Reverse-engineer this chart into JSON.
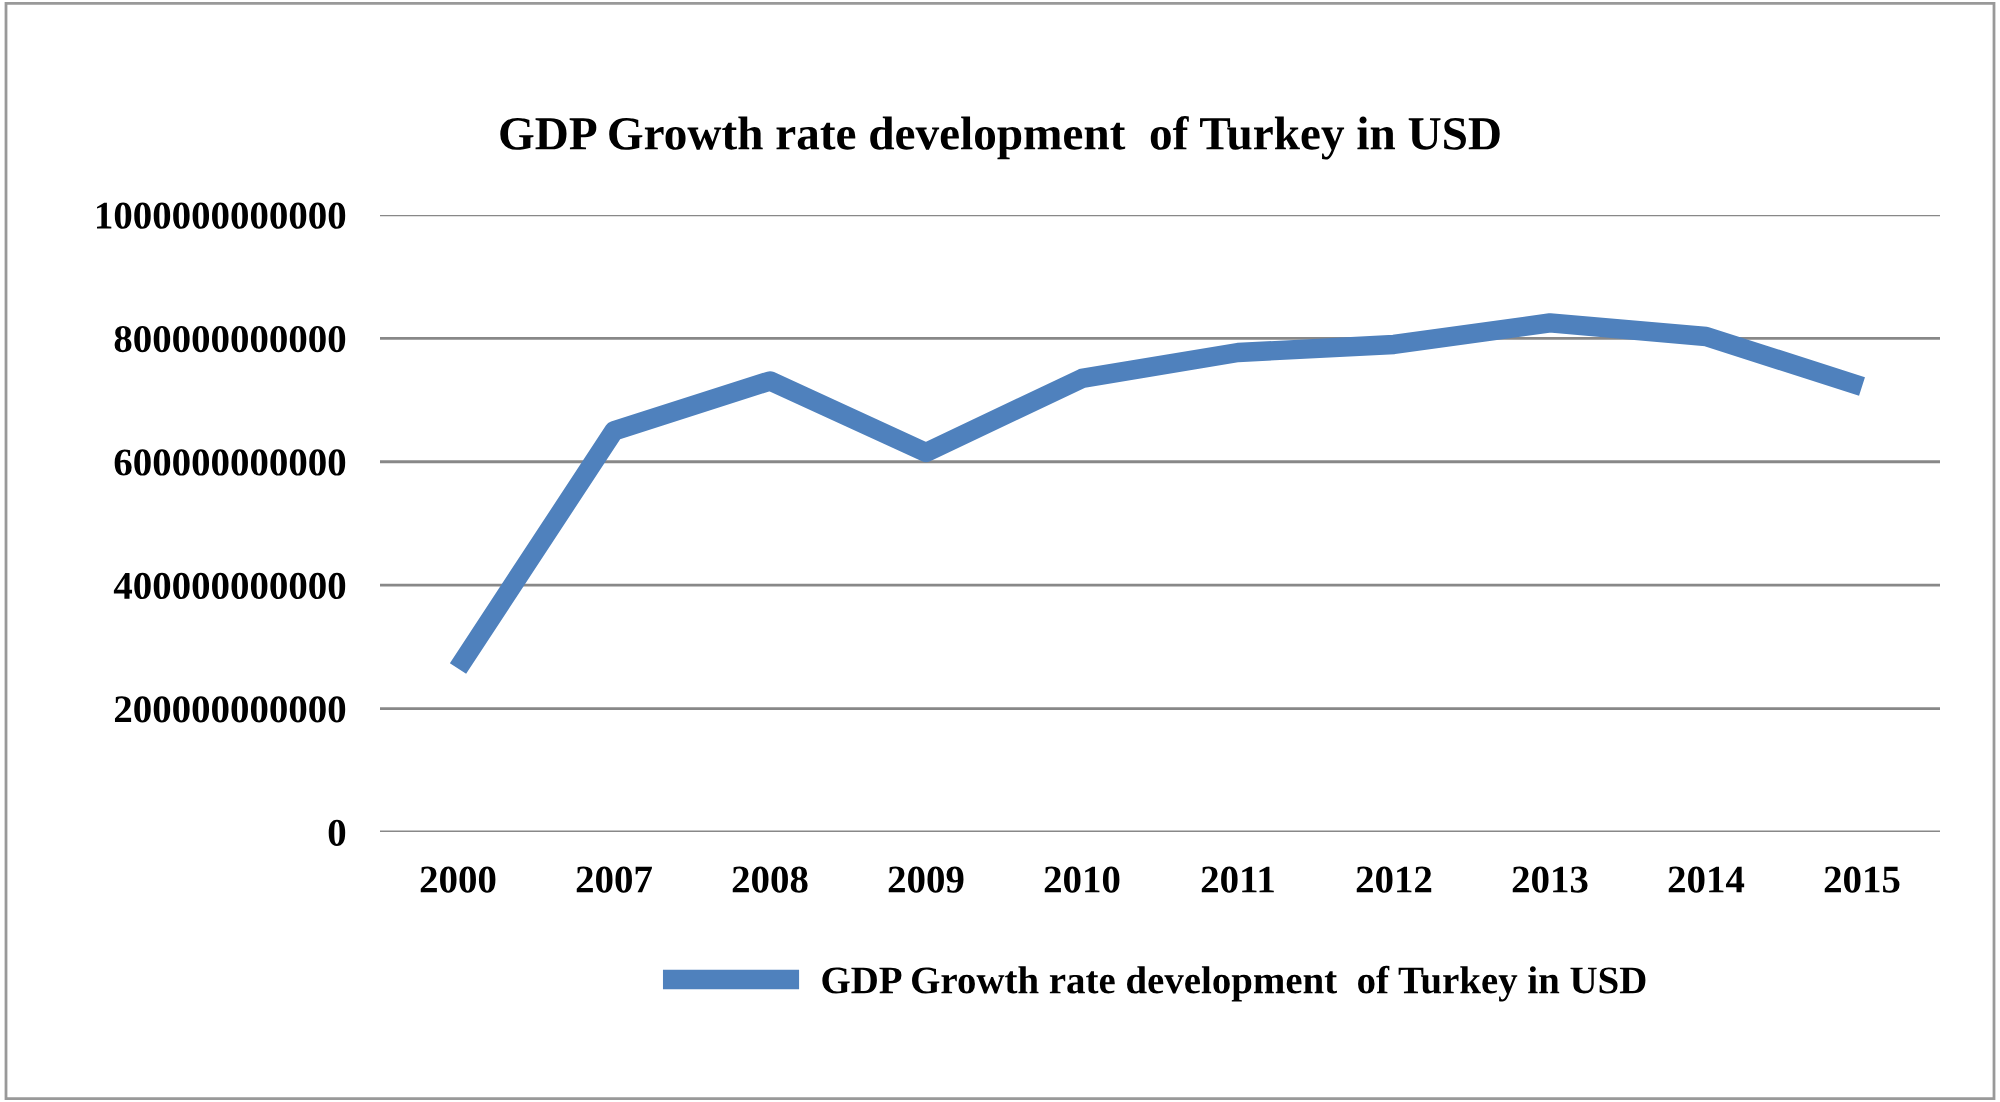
{
  "chart_data": {
    "type": "line",
    "title": "GDP Growth rate development  of Turkey in USD",
    "categories": [
      "2000",
      "2007",
      "2008",
      "2009",
      "2010",
      "2011",
      "2012",
      "2013",
      "2014",
      "2015"
    ],
    "series": [
      {
        "name": "GDP Growth rate development  of Turkey in USD",
        "color": "#4f81bd",
        "values": [
          265000000000,
          650000000000,
          731000000000,
          615000000000,
          735000000000,
          777000000000,
          790000000000,
          825000000000,
          803000000000,
          722000000000
        ]
      }
    ],
    "ylim": [
      0,
      1000000000000
    ],
    "yticks": [
      0,
      200000000000,
      400000000000,
      600000000000,
      800000000000,
      1000000000000
    ],
    "grid": "y",
    "legend": "bottom",
    "marker": "none",
    "line_style": "solid"
  }
}
